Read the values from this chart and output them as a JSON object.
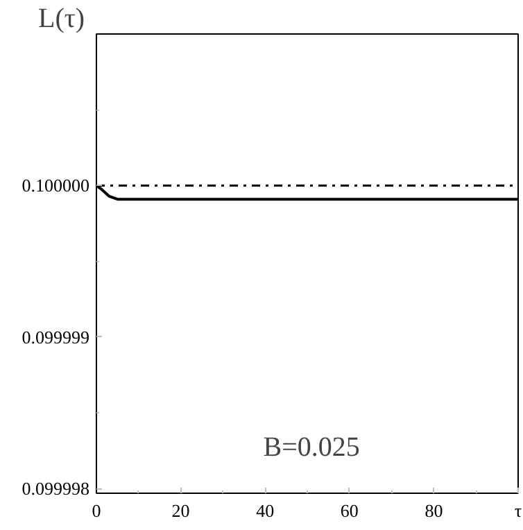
{
  "chart_data": {
    "type": "line",
    "xlabel": "τ",
    "ylabel": "L(τ)",
    "annotations": [
      "B=0.025"
    ],
    "xlim": [
      0,
      100
    ],
    "ylim": [
      0.09999797,
      0.100001
    ],
    "xticks": [
      0,
      {
        "value": 10,
        "label": null
      },
      20,
      {
        "value": 30,
        "label": null
      },
      40,
      {
        "value": 50,
        "label": null
      },
      60,
      {
        "value": 70,
        "label": null
      },
      80,
      {
        "value": 90,
        "label": null
      }
    ],
    "yticks": [
      {
        "value": 0.099998,
        "label": "0.099998"
      },
      {
        "value": 0.0999985,
        "label": null
      },
      {
        "value": 0.099999,
        "label": "0.099999"
      },
      {
        "value": 0.0999995,
        "label": null
      },
      {
        "value": 0.1,
        "label": "0.100000"
      },
      {
        "value": 0.1000005,
        "label": null
      }
    ],
    "grid": false,
    "marker": "none",
    "series": [
      {
        "color": "#000000",
        "line_style": "solid",
        "x": [
          0,
          1,
          3,
          5,
          100
        ],
        "values": [
          0.1,
          0.09999998,
          0.09999993,
          0.09999991,
          0.09999991
        ]
      },
      {
        "color": "#000000",
        "line_style": "dashdot",
        "x": [
          0,
          100
        ],
        "values": [
          0.1,
          0.1
        ]
      }
    ]
  }
}
